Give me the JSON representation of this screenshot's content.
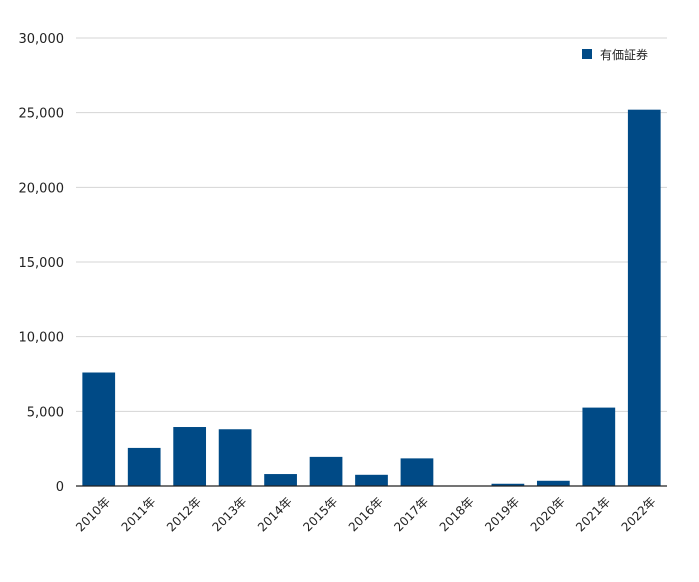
{
  "chart_data": {
    "type": "bar",
    "categories": [
      "2010年",
      "2011年",
      "2012年",
      "2013年",
      "2014年",
      "2015年",
      "2016年",
      "2017年",
      "2018年",
      "2019年",
      "2020年",
      "2021年",
      "2022年"
    ],
    "series": [
      {
        "name": "有価証券",
        "color": "#004a86",
        "values": [
          7600,
          2550,
          3950,
          3800,
          800,
          1950,
          750,
          1850,
          0,
          150,
          350,
          5250,
          25200
        ]
      }
    ],
    "ylim": [
      0,
      30000
    ],
    "yticks": [
      0,
      5000,
      10000,
      15000,
      20000,
      25000,
      30000
    ],
    "ytick_labels": [
      "0",
      "5,000",
      "10,000",
      "15,000",
      "20,000",
      "25,000",
      "30,000"
    ],
    "grid": true,
    "legend_position": "top-right"
  }
}
